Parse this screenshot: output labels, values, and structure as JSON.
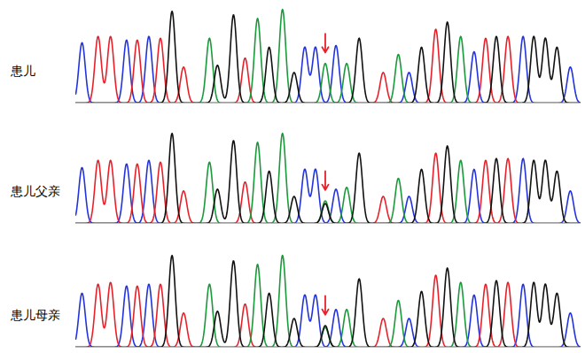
{
  "chart_data": [
    {
      "type": "chromatogram",
      "label": "患儿",
      "xlim": [
        88,
        655
      ],
      "ylim": [
        0,
        110
      ],
      "tick_labels": false,
      "arrow_x": 368,
      "arrow_color": "#e8202a",
      "series": [
        {
          "color": "#2233dd",
          "peaks_x": [
            95,
            145,
            170,
            345,
            357,
            380,
            462,
            535,
            590,
            643
          ],
          "peaks_height": [
            67,
            70,
            74,
            62,
            62,
            64,
            34,
            57,
            74,
            40
          ]
        },
        {
          "color": "#e8202a",
          "peaks_x": [
            113,
            127,
            157,
            183,
            209,
            278,
            433,
            492,
            548,
            573
          ],
          "peaks_height": [
            74,
            74,
            70,
            72,
            40,
            50,
            34,
            82,
            72,
            74
          ]
        },
        {
          "color": "#1a9a3a",
          "peaks_x": [
            238,
            292,
            320,
            368,
            392,
            450,
            520
          ],
          "peaks_height": [
            72,
            94,
            104,
            44,
            44,
            54,
            74
          ]
        },
        {
          "color": "#111111",
          "peaks_x": [
            196,
            247,
            265,
            305,
            333,
            406,
            476,
            505,
            560,
            602,
            615,
            628
          ],
          "peaks_height": [
            102,
            42,
            98,
            62,
            34,
            72,
            62,
            90,
            74,
            74,
            72,
            62
          ]
        }
      ]
    },
    {
      "type": "chromatogram",
      "label": "患儿父亲",
      "xlim": [
        88,
        655
      ],
      "ylim": [
        0,
        110
      ],
      "tick_labels": false,
      "arrow_x": 368,
      "arrow_color": "#e8202a",
      "series": [
        {
          "color": "#2233dd",
          "peaks_x": [
            95,
            145,
            170,
            345,
            357,
            380,
            462,
            535,
            590,
            643
          ],
          "peaks_height": [
            62,
            66,
            70,
            60,
            60,
            38,
            30,
            60,
            72,
            36
          ]
        },
        {
          "color": "#e8202a",
          "peaks_x": [
            113,
            127,
            157,
            183,
            209,
            278,
            433,
            492,
            548,
            573
          ],
          "peaks_height": [
            70,
            70,
            66,
            68,
            36,
            46,
            30,
            78,
            70,
            72
          ]
        },
        {
          "color": "#1a9a3a",
          "peaks_x": [
            238,
            292,
            320,
            368,
            392,
            450,
            520
          ],
          "peaks_height": [
            68,
            90,
            100,
            25,
            40,
            50,
            70
          ]
        },
        {
          "color": "#111111",
          "peaks_x": [
            196,
            247,
            265,
            305,
            333,
            368,
            406,
            476,
            505,
            560,
            602,
            615,
            628
          ],
          "peaks_height": [
            100,
            38,
            92,
            58,
            30,
            22,
            78,
            60,
            86,
            72,
            70,
            70,
            58
          ]
        }
      ]
    },
    {
      "type": "chromatogram",
      "label": "患儿母亲",
      "xlim": [
        88,
        655
      ],
      "ylim": [
        0,
        110
      ],
      "tick_labels": false,
      "arrow_x": 368,
      "arrow_color": "#e8202a",
      "series": [
        {
          "color": "#2233dd",
          "peaks_x": [
            95,
            145,
            170,
            345,
            357,
            380,
            462,
            535,
            590,
            643
          ],
          "peaks_height": [
            60,
            68,
            70,
            58,
            58,
            42,
            32,
            58,
            70,
            38
          ]
        },
        {
          "color": "#e8202a",
          "peaks_x": [
            113,
            127,
            157,
            183,
            209,
            278,
            433,
            492,
            548,
            573
          ],
          "peaks_height": [
            70,
            72,
            68,
            70,
            38,
            48,
            32,
            80,
            70,
            72
          ]
        },
        {
          "color": "#1a9a3a",
          "peaks_x": [
            238,
            292,
            320,
            368,
            392,
            450,
            520
          ],
          "peaks_height": [
            70,
            92,
            102,
            22,
            42,
            52,
            72
          ]
        },
        {
          "color": "#111111",
          "peaks_x": [
            196,
            247,
            265,
            305,
            333,
            368,
            406,
            476,
            505,
            560,
            602,
            615,
            628
          ],
          "peaks_height": [
            102,
            40,
            96,
            60,
            32,
            24,
            76,
            62,
            88,
            74,
            72,
            70,
            60
          ]
        }
      ]
    }
  ]
}
